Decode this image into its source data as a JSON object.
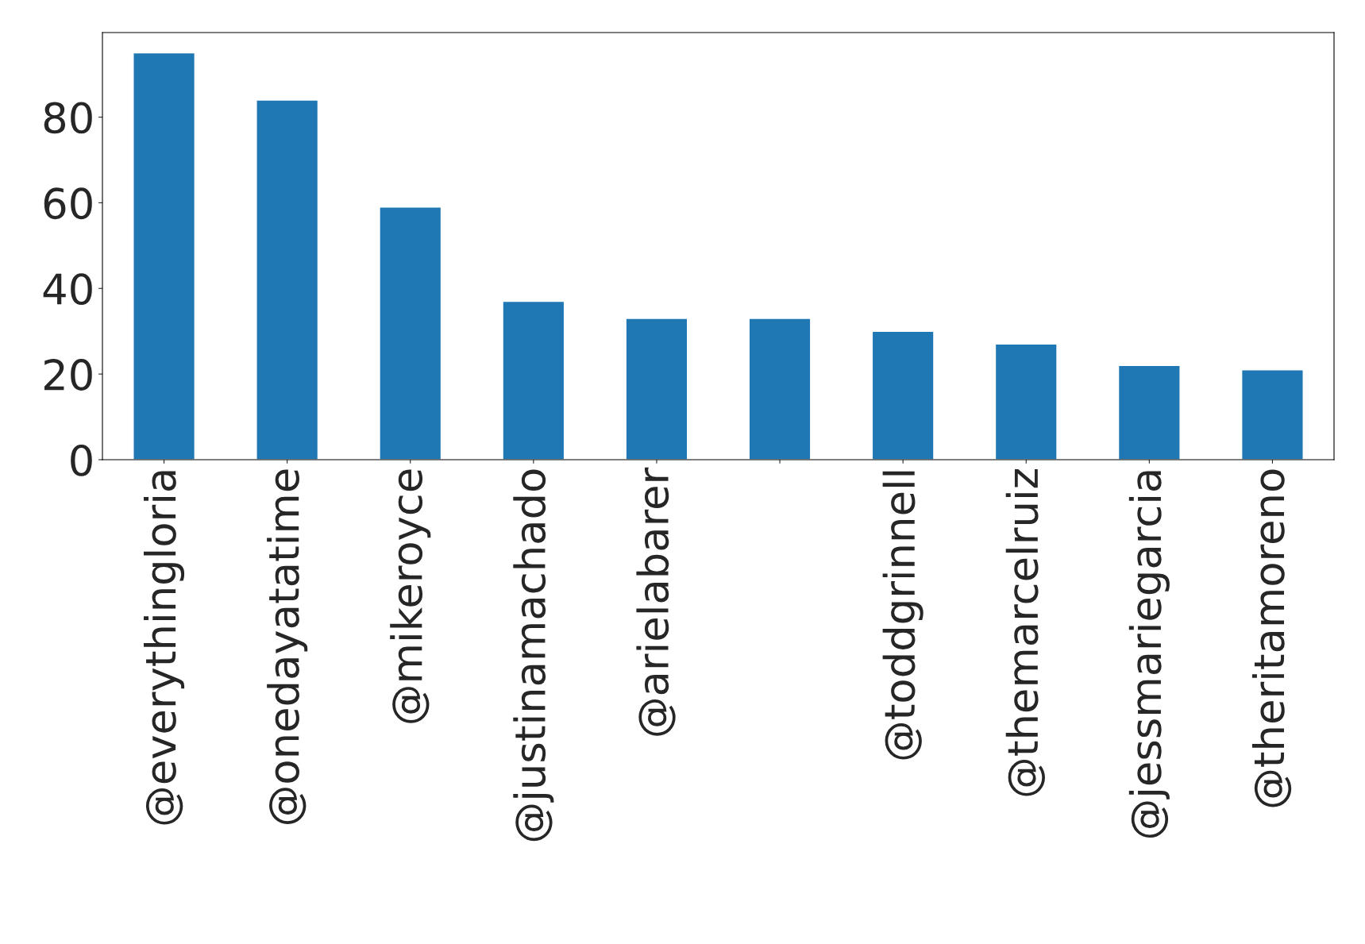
{
  "chart_data": {
    "type": "bar",
    "categories": [
      "@everythingloria",
      "@onedayatatime",
      "@mikeroyce",
      "@justinamachado",
      "@arielabarer",
      null,
      "@toddgrinnell",
      "@themarcelruiz",
      "@jessmariegarcia",
      "@theritamoreno"
    ],
    "values": [
      95,
      84,
      59,
      37,
      33,
      33,
      30,
      27,
      22,
      21
    ],
    "color": "#1f77b4",
    "ylim": [
      0,
      99.75
    ],
    "yticks": [
      0,
      20,
      40,
      60,
      80
    ],
    "grid": false,
    "legend": false
  }
}
